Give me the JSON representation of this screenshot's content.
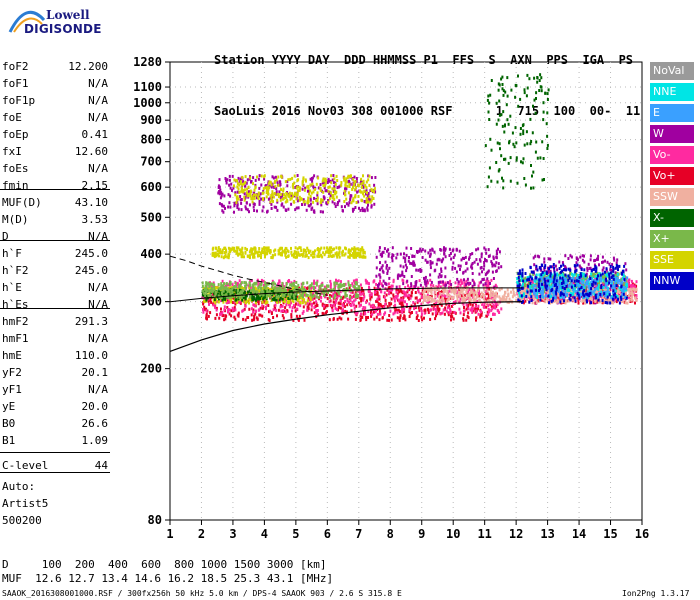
{
  "logo": {
    "line1": "Lowell",
    "line2": "DIGISONDE"
  },
  "header": {
    "line1": "Station YYYY DAY  DDD HHMMSS P1  FFS  S  AXN  PPS  IGA  PS",
    "line2": "SaoLuis 2016 Nov03 308 001000 RSF      1  715  100  00-  11"
  },
  "params": [
    {
      "k": "foF2",
      "v": "12.200"
    },
    {
      "k": "foF1",
      "v": "N/A"
    },
    {
      "k": "foF1p",
      "v": "N/A"
    },
    {
      "k": "foE",
      "v": "N/A"
    },
    {
      "k": "foEp",
      "v": "0.41"
    },
    {
      "k": "fxI",
      "v": "12.60"
    },
    {
      "k": "foEs",
      "v": "N/A"
    },
    {
      "k": "fmin",
      "v": "2.15"
    },
    {
      "k": "MUF(D)",
      "v": "43.10"
    },
    {
      "k": "M(D)",
      "v": "3.53"
    },
    {
      "k": "D",
      "v": "N/A"
    },
    {
      "k": "h`F",
      "v": "245.0"
    },
    {
      "k": "h`F2",
      "v": "245.0"
    },
    {
      "k": "h`E",
      "v": "N/A"
    },
    {
      "k": "h`Es",
      "v": "N/A"
    },
    {
      "k": "hmF2",
      "v": "291.3"
    },
    {
      "k": "hmF1",
      "v": "N/A"
    },
    {
      "k": "hmE",
      "v": "110.0"
    },
    {
      "k": "yF2",
      "v": "20.1"
    },
    {
      "k": "yF1",
      "v": "N/A"
    },
    {
      "k": "yE",
      "v": "20.0"
    },
    {
      "k": "B0",
      "v": "26.6"
    },
    {
      "k": "B1",
      "v": "1.09"
    },
    {
      "k": "C-level",
      "v": "44"
    }
  ],
  "auto": {
    "line1": "Auto:",
    "line2": "Artist5",
    "line3": "500200"
  },
  "legend": [
    {
      "label": "NoVal",
      "color": "#9a9a9a"
    },
    {
      "label": "NNE",
      "color": "#00e5e5"
    },
    {
      "label": "E",
      "color": "#3aa0ff"
    },
    {
      "label": "W",
      "color": "#a000a0"
    },
    {
      "label": "Vo-",
      "color": "#ff2aa0"
    },
    {
      "label": "Vo+",
      "color": "#e60026"
    },
    {
      "label": "SSW",
      "color": "#f0b0a0"
    },
    {
      "label": "X-",
      "color": "#006400"
    },
    {
      "label": "X+",
      "color": "#7ab84a"
    },
    {
      "label": "SSE",
      "color": "#d4d400"
    },
    {
      "label": "NNW",
      "color": "#0000c8"
    }
  ],
  "footer": {
    "d_row": "D     100  200  400  600  800 1000 1500 3000 [km]",
    "muf_row": "MUF  12.6 12.7 13.4 14.6 16.2 18.5 25.3 43.1 [MHz]",
    "bottom_left": "SAAOK_2016308001000.RSF / 300fx256h 50 kHz 5.0 km / DPS-4 SAAOK 903 / 2.6 S 315.8 E",
    "bottom_right": "Ion2Png 1.3.17"
  },
  "chart_data": {
    "type": "scatter",
    "xlim": [
      1,
      16
    ],
    "ylim": [
      80,
      1280
    ],
    "x_ticks": [
      1,
      2,
      3,
      4,
      5,
      6,
      7,
      8,
      9,
      10,
      11,
      12,
      13,
      14,
      15,
      16
    ],
    "y_ticks": [
      80,
      200,
      300,
      400,
      500,
      600,
      700,
      800,
      900,
      1000,
      1100,
      1280
    ],
    "y_scale": "log",
    "series": [
      {
        "name": "Vo+",
        "color": "#e60026",
        "clusters": [
          [
            2.0,
            11.4,
            270,
            330
          ],
          [
            12.2,
            15.8,
            300,
            340
          ]
        ]
      },
      {
        "name": "Vo-",
        "color": "#ff2aa0",
        "clusters": [
          [
            2.0,
            11.5,
            280,
            345
          ],
          [
            12.0,
            15.8,
            305,
            350
          ]
        ]
      },
      {
        "name": "W",
        "color": "#a000a0",
        "clusters": [
          [
            2.5,
            7.5,
            520,
            650
          ],
          [
            7.5,
            11.5,
            330,
            420
          ],
          [
            12.5,
            15.5,
            300,
            400
          ]
        ]
      },
      {
        "name": "SSE",
        "color": "#d4d400",
        "clusters": [
          [
            2.3,
            7.2,
            395,
            420
          ],
          [
            2.0,
            5.5,
            300,
            330
          ],
          [
            3.0,
            7.5,
            550,
            650
          ]
        ]
      },
      {
        "name": "X-",
        "color": "#006400",
        "clusters": [
          [
            2.0,
            5.0,
            305,
            325
          ],
          [
            11.0,
            13.0,
            600,
            1200
          ]
        ]
      },
      {
        "name": "X+",
        "color": "#7ab84a",
        "clusters": [
          [
            2.0,
            7.0,
            310,
            340
          ],
          [
            12.0,
            15.5,
            320,
            360
          ]
        ]
      },
      {
        "name": "SSW",
        "color": "#f0b0a0",
        "clusters": [
          [
            9.0,
            15.8,
            300,
            330
          ]
        ]
      },
      {
        "name": "NNE",
        "color": "#00e5e5",
        "clusters": [
          [
            12.0,
            15.5,
            310,
            360
          ]
        ]
      },
      {
        "name": "E",
        "color": "#3aa0ff",
        "clusters": [
          [
            12.5,
            15.5,
            310,
            350
          ]
        ]
      },
      {
        "name": "NNW",
        "color": "#0000c8",
        "clusters": [
          [
            12.0,
            15.5,
            300,
            380
          ]
        ]
      }
    ],
    "profile": {
      "x": [
        1.0,
        2.0,
        3.0,
        4.0,
        5.0,
        6.0,
        7.0,
        8.0,
        9.0,
        10.0,
        11.0,
        12.2
      ],
      "y": [
        222,
        238,
        252,
        262,
        270,
        277,
        283,
        289,
        293,
        297,
        299,
        300
      ]
    },
    "profile_upper": {
      "x": [
        1.0,
        2.0,
        3.0,
        4.0,
        5.0,
        6.0,
        7.0,
        8.0,
        9.0,
        10.0,
        11.0,
        12.2
      ],
      "y": [
        300,
        306,
        311,
        315,
        318,
        320,
        322,
        324,
        325,
        326,
        326,
        326
      ]
    },
    "dashed_trace": {
      "x": [
        1.0,
        1.5,
        2.0,
        2.5,
        3.0,
        3.5,
        4.0,
        4.5,
        5.0,
        5.5,
        6.0
      ],
      "y": [
        395,
        385,
        372,
        362,
        352,
        344,
        337,
        330,
        323,
        318,
        312
      ]
    }
  }
}
